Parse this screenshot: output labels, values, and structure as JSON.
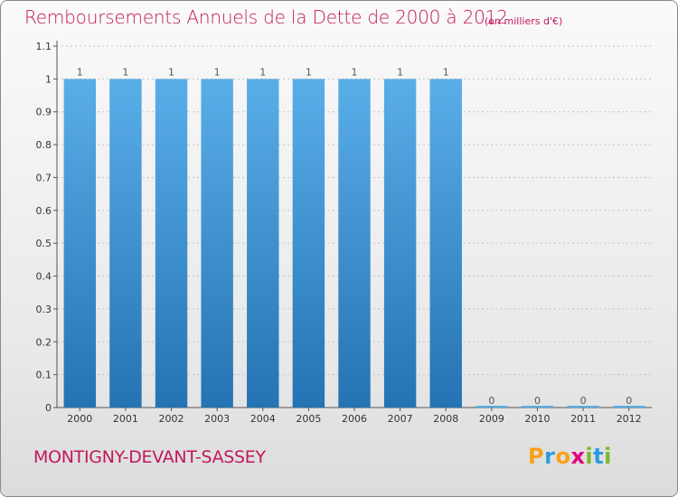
{
  "header": {
    "title": "Remboursements Annuels de la Dette de 2000 à 2012",
    "unit": "(en milliers d'€)"
  },
  "footer": {
    "commune": "MONTIGNY-DEVANT-SASSEY",
    "logo_letters": [
      "P",
      "r",
      "o",
      "x",
      "i",
      "t",
      "i"
    ],
    "logo_colors": [
      "#f7a21b",
      "#2b9be0",
      "#f7a21b",
      "#e5007e",
      "#7cb72b",
      "#2b9be0",
      "#7cb72b"
    ]
  },
  "colors": {
    "title": "#c2185b",
    "bar_top": "#5aaee8",
    "bar_bottom": "#2473b4",
    "axis": "#555555",
    "grid": "#c4c4c4",
    "tick_label": "#333333",
    "value_label": "#555555"
  },
  "chart_data": {
    "type": "bar",
    "categories": [
      "2000",
      "2001",
      "2002",
      "2003",
      "2004",
      "2005",
      "2006",
      "2007",
      "2008",
      "2009",
      "2010",
      "2011",
      "2012"
    ],
    "values": [
      1,
      1,
      1,
      1,
      1,
      1,
      1,
      1,
      1,
      0,
      0,
      0,
      0
    ],
    "value_labels": [
      "1",
      "1",
      "1",
      "1",
      "1",
      "1",
      "1",
      "1",
      "1",
      "0",
      "0",
      "0",
      "0"
    ],
    "ylim": [
      0,
      1.1
    ],
    "yticks": [
      0,
      0.1,
      0.2,
      0.3,
      0.4,
      0.5,
      0.6,
      0.7,
      0.8,
      0.9,
      1,
      1.1
    ],
    "ytick_labels": [
      "0",
      "0.1",
      "0.2",
      "0.3",
      "0.4",
      "0.5",
      "0.6",
      "0.7",
      "0.8",
      "0.9",
      "1",
      "1.1"
    ],
    "grid": "horizontal dotted"
  }
}
